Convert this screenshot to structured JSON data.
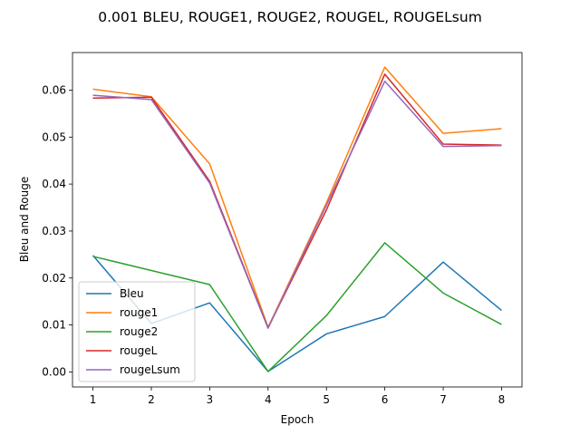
{
  "chart_data": {
    "type": "line",
    "title": "0.001 BLEU, ROUGE1, ROUGE2, ROUGEL, ROUGELsum",
    "xlabel": "Epoch",
    "ylabel": "Bleu and Rouge",
    "x": [
      1,
      2,
      3,
      4,
      5,
      6,
      7,
      8
    ],
    "xticks": [
      "1",
      "2",
      "3",
      "4",
      "5",
      "6",
      "7",
      "8"
    ],
    "yticks": [
      "0.00",
      "0.01",
      "0.02",
      "0.03",
      "0.04",
      "0.05",
      "0.06"
    ],
    "ylim": [
      -0.0032,
      0.068
    ],
    "xlim": [
      0.65,
      8.35
    ],
    "grid": false,
    "legend_position": "lower-left",
    "series": [
      {
        "name": "Bleu",
        "color": "#1f77b4",
        "values": [
          0.0248,
          0.0103,
          0.0147,
          0.0001,
          0.0081,
          0.0118,
          0.0234,
          0.0131
        ]
      },
      {
        "name": "rouge1",
        "color": "#ff7f0e",
        "values": [
          0.0602,
          0.0586,
          0.0443,
          0.0095,
          0.036,
          0.0649,
          0.0508,
          0.0518
        ]
      },
      {
        "name": "rouge2",
        "color": "#2ca02c",
        "values": [
          0.0246,
          0.0216,
          0.0186,
          0.0001,
          0.012,
          0.0275,
          0.0168,
          0.0101
        ]
      },
      {
        "name": "rougeL",
        "color": "#d62728",
        "values": [
          0.0583,
          0.0585,
          0.0406,
          0.0094,
          0.0345,
          0.0634,
          0.0485,
          0.0483
        ]
      },
      {
        "name": "rougeLsum",
        "color": "#9467bd",
        "values": [
          0.0589,
          0.058,
          0.0402,
          0.0093,
          0.0355,
          0.0619,
          0.048,
          0.0482
        ]
      }
    ]
  }
}
